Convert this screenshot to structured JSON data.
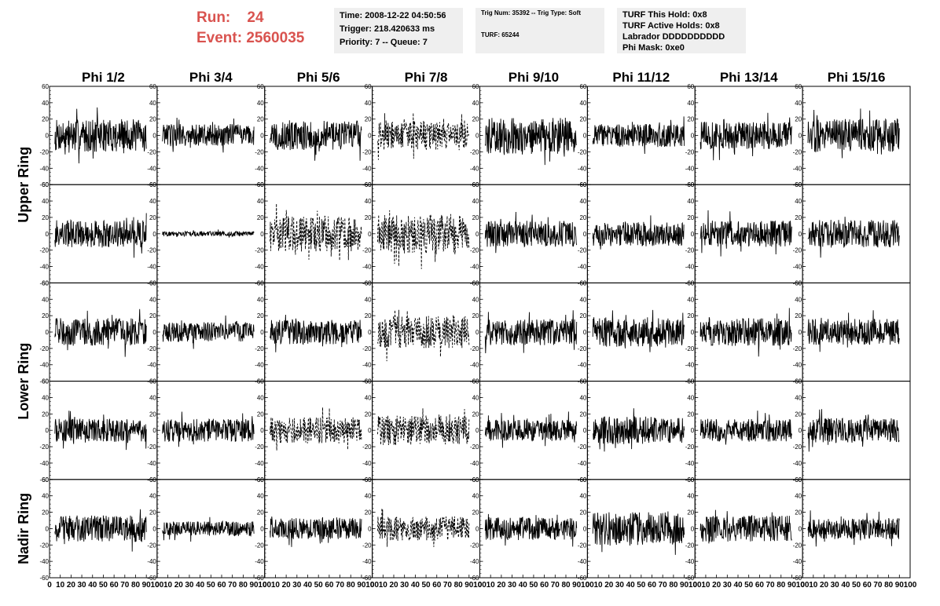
{
  "header": {
    "run_label": "Run:",
    "run_value": "24",
    "event_label": "Event:",
    "event_value": "2560035",
    "time": "Time: 2008-12-22 04:50:56",
    "trigger": "Trigger: 218.420633 ms",
    "priority_queue": "Priority: 7 -- Queue: 7",
    "trig_num_type": "Trig Num: 35392 -- Trig Type: Soft",
    "turf": "TURF: 65244",
    "turf_this_hold": "TURF This Hold: 0x8",
    "turf_active_holds": "TURF Active Holds: 0x8",
    "labrador": "Labrador DDDDDDDDDD",
    "phi_mask": "Phi Mask: 0xe0"
  },
  "colors": {
    "header_red": "#d9534f",
    "info_bg": "#efefef",
    "trace": "#000000"
  },
  "chart_data": {
    "type": "line",
    "grid": false,
    "columns": [
      "Phi 1/2",
      "Phi 3/4",
      "Phi 5/6",
      "Phi 7/8",
      "Phi 9/10",
      "Phi 11/12",
      "Phi 13/14",
      "Phi 15/16"
    ],
    "ring_labels": [
      "Upper Ring",
      "Lower Ring",
      "Nadir Ring"
    ],
    "ring_row_spans": [
      [
        0,
        1
      ],
      [
        2,
        3
      ],
      [
        4,
        4
      ]
    ],
    "rows": 5,
    "xlim": [
      0,
      100
    ],
    "ylim": [
      -60,
      60
    ],
    "y_ticks": [
      "60",
      "40",
      "20",
      "0",
      "-20",
      "-40",
      "-60"
    ],
    "x_ticks": [
      "0",
      "10",
      "20",
      "30",
      "40",
      "50",
      "60",
      "70",
      "80",
      "90",
      "100"
    ],
    "panels": [
      [
        {
          "amplitude": 20,
          "style": "solid"
        },
        {
          "amplitude": 14,
          "style": "solid"
        },
        {
          "amplitude": 18,
          "style": "solid"
        },
        {
          "amplitude": 18,
          "style": "dashed"
        },
        {
          "amplitude": 22,
          "style": "solid"
        },
        {
          "amplitude": 14,
          "style": "solid"
        },
        {
          "amplitude": 17,
          "style": "solid"
        },
        {
          "amplitude": 20,
          "style": "solid"
        }
      ],
      [
        {
          "amplitude": 17,
          "style": "solid"
        },
        {
          "amplitude": 3,
          "style": "solid"
        },
        {
          "amplitude": 22,
          "style": "dashed"
        },
        {
          "amplitude": 24,
          "style": "dashed"
        },
        {
          "amplitude": 16,
          "style": "solid"
        },
        {
          "amplitude": 15,
          "style": "solid"
        },
        {
          "amplitude": 16,
          "style": "solid"
        },
        {
          "amplitude": 17,
          "style": "solid"
        }
      ],
      [
        {
          "amplitude": 17,
          "style": "solid"
        },
        {
          "amplitude": 12,
          "style": "solid"
        },
        {
          "amplitude": 15,
          "style": "solid"
        },
        {
          "amplitude": 20,
          "style": "dashed"
        },
        {
          "amplitude": 16,
          "style": "solid"
        },
        {
          "amplitude": 18,
          "style": "solid"
        },
        {
          "amplitude": 17,
          "style": "solid"
        },
        {
          "amplitude": 16,
          "style": "solid"
        }
      ],
      [
        {
          "amplitude": 14,
          "style": "solid"
        },
        {
          "amplitude": 14,
          "style": "solid"
        },
        {
          "amplitude": 16,
          "style": "dashed"
        },
        {
          "amplitude": 18,
          "style": "dashed"
        },
        {
          "amplitude": 13,
          "style": "solid"
        },
        {
          "amplitude": 17,
          "style": "solid"
        },
        {
          "amplitude": 14,
          "style": "solid"
        },
        {
          "amplitude": 15,
          "style": "solid"
        }
      ],
      [
        {
          "amplitude": 16,
          "style": "solid"
        },
        {
          "amplitude": 9,
          "style": "solid"
        },
        {
          "amplitude": 13,
          "style": "solid"
        },
        {
          "amplitude": 15,
          "style": "dashed"
        },
        {
          "amplitude": 14,
          "style": "solid"
        },
        {
          "amplitude": 20,
          "style": "solid"
        },
        {
          "amplitude": 16,
          "style": "solid"
        },
        {
          "amplitude": 13,
          "style": "solid"
        }
      ]
    ]
  }
}
